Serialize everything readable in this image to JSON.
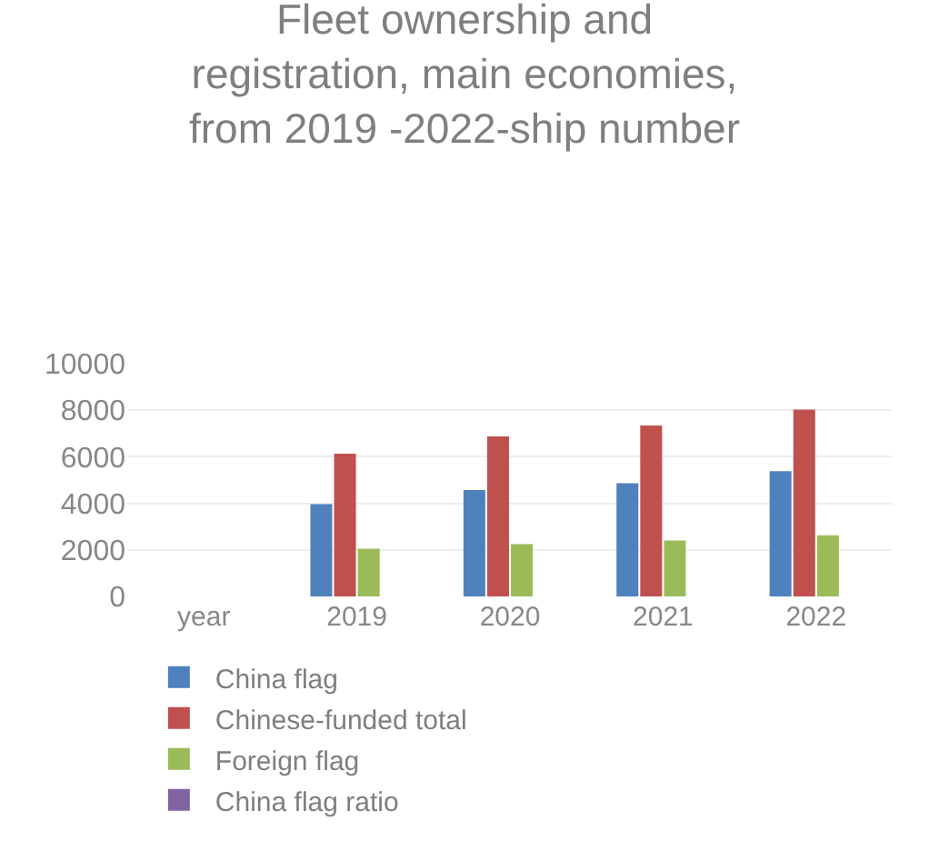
{
  "chart_data": {
    "type": "bar",
    "title": "Fleet ownership and registration, main economies, from 2019 -2022-ship number",
    "categories": [
      "year",
      "2019",
      "2020",
      "2021",
      "2022"
    ],
    "series": [
      {
        "name": "China flag",
        "color": "#4f81bd",
        "values": [
          null,
          3960,
          4570,
          4860,
          5380
        ]
      },
      {
        "name": "Chinese-funded total",
        "color": "#c0504d",
        "values": [
          null,
          6130,
          6880,
          7340,
          8030
        ]
      },
      {
        "name": "Foreign flag",
        "color": "#9bbb59",
        "values": [
          null,
          2050,
          2250,
          2400,
          2630
        ]
      },
      {
        "name": "China flag ratio",
        "color": "#8064a2",
        "values": [
          null,
          null,
          null,
          null,
          null
        ]
      }
    ],
    "ylim": [
      0,
      10000
    ],
    "yticks": [
      0,
      2000,
      4000,
      6000,
      8000,
      10000
    ],
    "grid": "y",
    "legend": "bottom"
  }
}
